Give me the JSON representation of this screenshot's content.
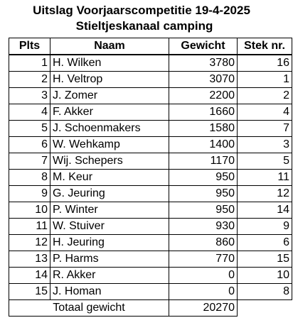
{
  "title": "Uitslag Voorjaarscompetitie 19-4-2025",
  "subtitle": "Stieltjeskanaal camping",
  "headers": {
    "place": "Plts",
    "name": "Naam",
    "weight": "Gewicht",
    "peg": "Stek nr."
  },
  "rows": [
    {
      "place": "1",
      "name": "H. Wilken",
      "weight": "3780",
      "peg": "16"
    },
    {
      "place": "2",
      "name": "H. Veltrop",
      "weight": "3070",
      "peg": "1"
    },
    {
      "place": "3",
      "name": "J. Zomer",
      "weight": "2200",
      "peg": "2"
    },
    {
      "place": "4",
      "name": "F. Akker",
      "weight": "1660",
      "peg": "4"
    },
    {
      "place": "5",
      "name": "J. Schoenmakers",
      "weight": "1580",
      "peg": "7"
    },
    {
      "place": "6",
      "name": "W. Wehkamp",
      "weight": "1400",
      "peg": "3"
    },
    {
      "place": "7",
      "name": "Wij. Schepers",
      "weight": "1170",
      "peg": "5"
    },
    {
      "place": "8",
      "name": "M. Keur",
      "weight": "950",
      "peg": "11"
    },
    {
      "place": "9",
      "name": "G. Jeuring",
      "weight": "950",
      "peg": "12"
    },
    {
      "place": "10",
      "name": "P. Winter",
      "weight": "950",
      "peg": "14"
    },
    {
      "place": "11",
      "name": "W. Stuiver",
      "weight": "930",
      "peg": "9"
    },
    {
      "place": "12",
      "name": "H. Jeuring",
      "weight": "860",
      "peg": "6"
    },
    {
      "place": "13",
      "name": "P. Harms",
      "weight": "770",
      "peg": "15"
    },
    {
      "place": "14",
      "name": "R. Akker",
      "weight": "0",
      "peg": "10"
    },
    {
      "place": "15",
      "name": "J. Homan",
      "weight": "0",
      "peg": "8"
    }
  ],
  "total": {
    "label": "Totaal gewicht",
    "value": "20270"
  }
}
